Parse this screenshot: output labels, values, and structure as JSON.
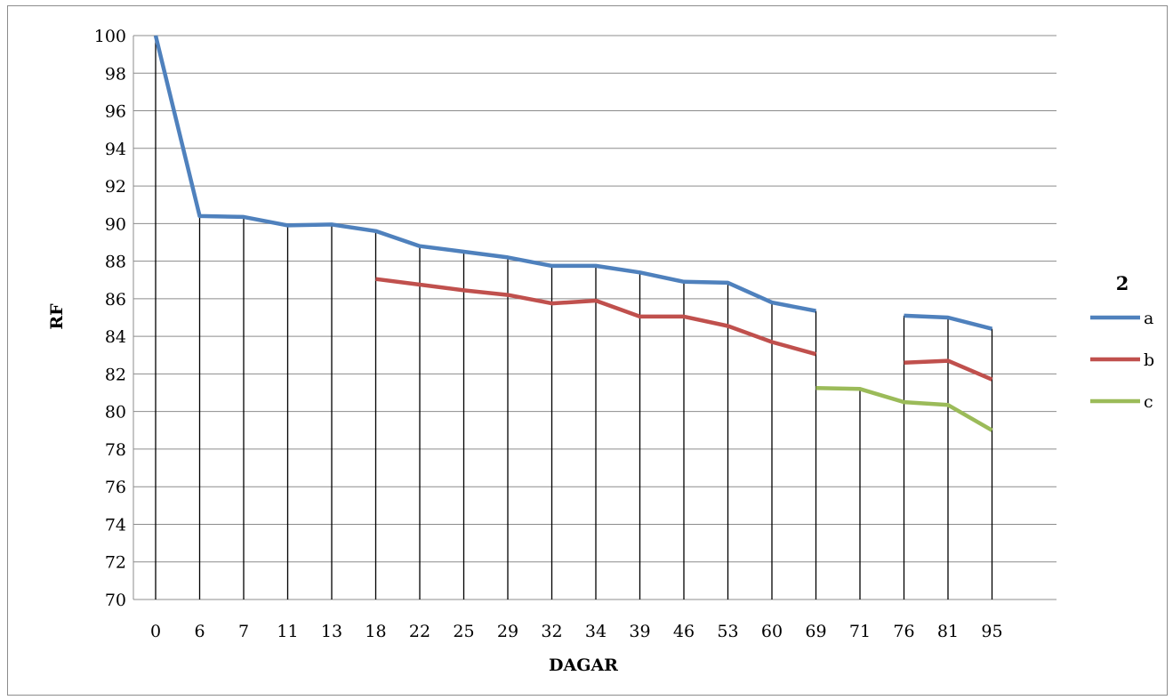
{
  "chart_data": {
    "type": "line",
    "title": "",
    "xlabel": "DAGAR",
    "ylabel": "RF",
    "ylim": [
      70,
      100
    ],
    "ytick_step": 2,
    "grid": "horizontal major gridlines; vertical drop lines at each category",
    "legend": {
      "title": "2",
      "position": "right"
    },
    "categories": [
      "0",
      "6",
      "7",
      "11",
      "13",
      "18",
      "22",
      "25",
      "29",
      "32",
      "34",
      "39",
      "46",
      "53",
      "60",
      "69",
      "71",
      "76",
      "81",
      "95"
    ],
    "series": [
      {
        "name": "a",
        "color": "#4f81bd",
        "values": [
          100,
          90.4,
          90.35,
          89.9,
          89.95,
          89.6,
          88.8,
          88.5,
          88.2,
          87.75,
          87.75,
          87.4,
          86.9,
          86.85,
          85.8,
          85.35,
          null,
          85.1,
          85.0,
          84.4
        ]
      },
      {
        "name": "b",
        "color": "#c0504d",
        "values": [
          null,
          null,
          null,
          null,
          null,
          87.05,
          86.75,
          86.45,
          86.2,
          85.75,
          85.9,
          85.05,
          85.05,
          84.55,
          83.7,
          83.05,
          null,
          82.6,
          82.7,
          81.7
        ]
      },
      {
        "name": "c",
        "color": "#9bbb59",
        "values": [
          null,
          null,
          null,
          null,
          null,
          null,
          null,
          null,
          null,
          null,
          null,
          null,
          null,
          null,
          null,
          81.25,
          81.2,
          80.5,
          80.35,
          79.0
        ]
      }
    ]
  }
}
